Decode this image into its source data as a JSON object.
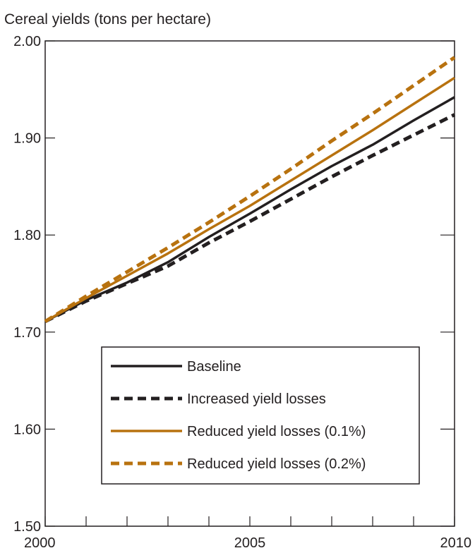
{
  "chart_data": {
    "type": "line",
    "title": "Cereal yields (tons per hectare)",
    "xlabel": "",
    "ylabel": "",
    "xlim": [
      2000,
      2010
    ],
    "ylim": [
      1.5,
      2.0
    ],
    "x_ticks": [
      2000,
      2001,
      2002,
      2003,
      2004,
      2005,
      2006,
      2007,
      2008,
      2009,
      2010
    ],
    "x_tick_labels": [
      "2000",
      "2005",
      "2010"
    ],
    "y_ticks": [
      1.5,
      1.6,
      1.7,
      1.8,
      1.9,
      2.0
    ],
    "y_tick_labels": [
      "1.50",
      "1.60",
      "1.70",
      "1.80",
      "1.90",
      "2.00"
    ],
    "grid": false,
    "legend_position": "lower-center",
    "x": [
      2000,
      2001,
      2002,
      2003,
      2004,
      2005,
      2006,
      2007,
      2008,
      2009,
      2010
    ],
    "series": [
      {
        "name": "Baseline",
        "color": "#231f20",
        "dash": "solid",
        "values": [
          1.711,
          1.733,
          1.751,
          1.772,
          1.798,
          1.822,
          1.847,
          1.871,
          1.893,
          1.918,
          1.942
        ]
      },
      {
        "name": "Increased yield losses",
        "color": "#231f20",
        "dash": "dashed",
        "values": [
          1.711,
          1.732,
          1.75,
          1.768,
          1.792,
          1.814,
          1.837,
          1.86,
          1.882,
          1.903,
          1.924
        ]
      },
      {
        "name": "Reduced yield losses (0.1%)",
        "color": "#b8720f",
        "dash": "solid",
        "values": [
          1.711,
          1.735,
          1.758,
          1.781,
          1.806,
          1.83,
          1.856,
          1.882,
          1.908,
          1.935,
          1.962
        ]
      },
      {
        "name": "Reduced yield losses (0.2%)",
        "color": "#b8720f",
        "dash": "dashed",
        "values": [
          1.711,
          1.737,
          1.762,
          1.787,
          1.813,
          1.84,
          1.868,
          1.897,
          1.925,
          1.954,
          1.983
        ]
      }
    ]
  }
}
